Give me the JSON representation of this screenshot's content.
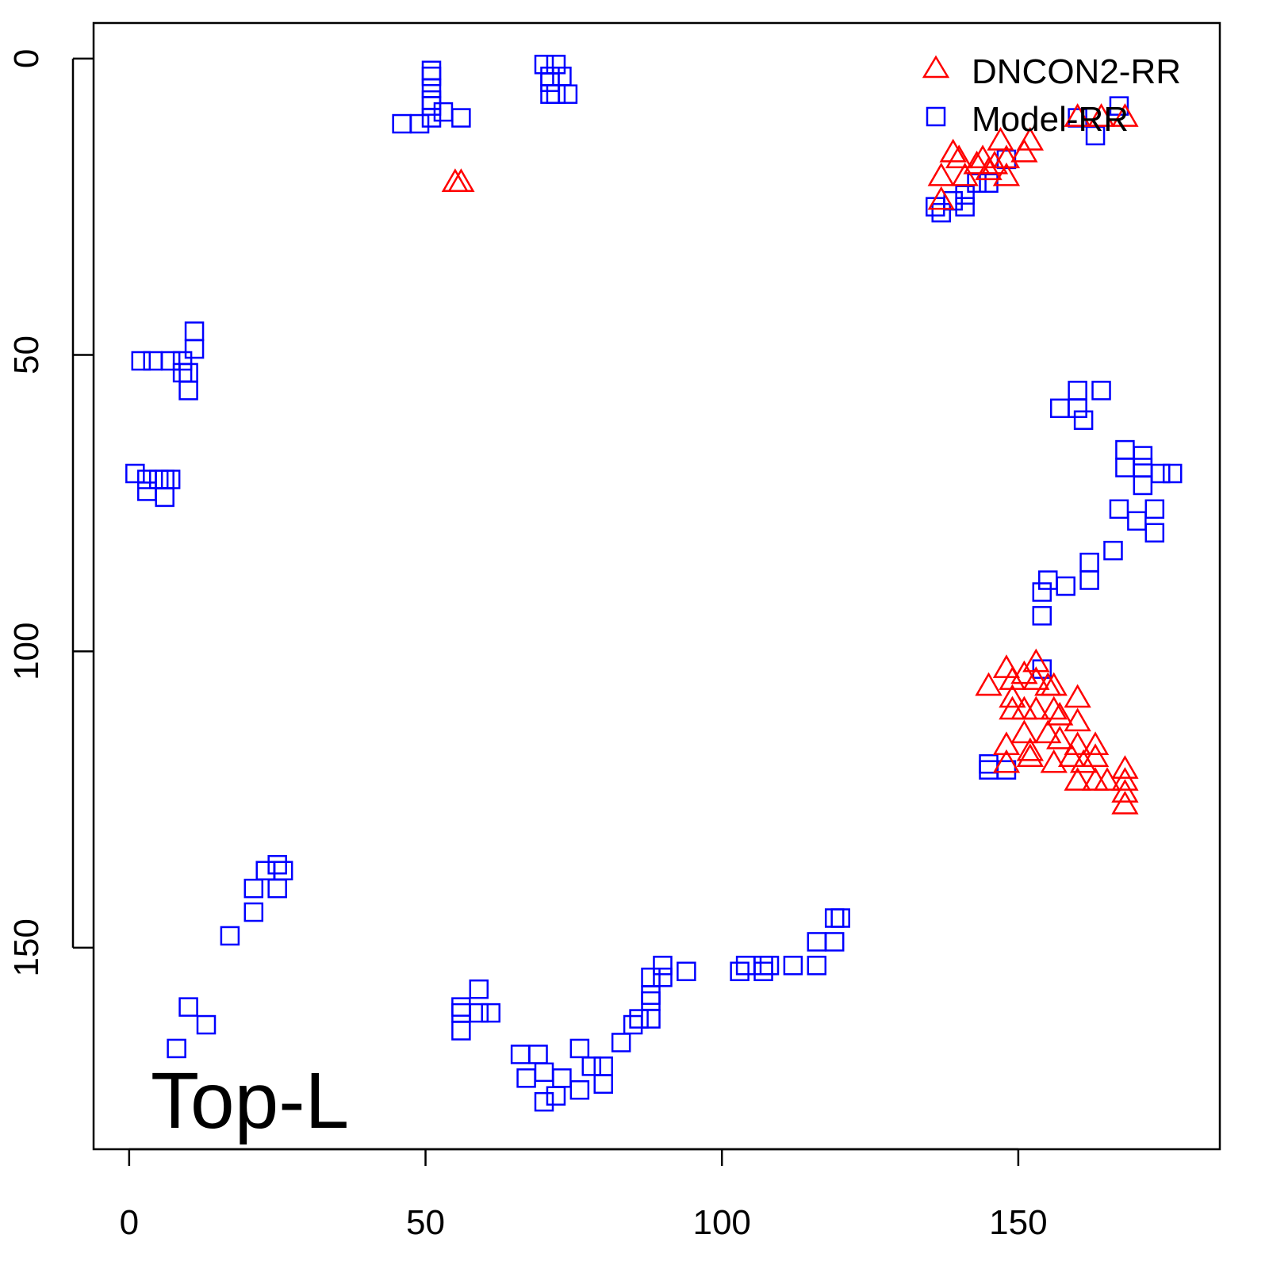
{
  "chart_data": {
    "type": "scatter",
    "title": "",
    "xlabel": "",
    "ylabel": "",
    "xlim": [
      -6,
      184
    ],
    "ylim": [
      -6,
      184
    ],
    "y_inverted": true,
    "x_ticks": [
      "0",
      "50",
      "100",
      "150"
    ],
    "x_tick_values": [
      0,
      50,
      100,
      150
    ],
    "y_ticks": [
      "0",
      "50",
      "100",
      "150"
    ],
    "y_tick_values": [
      0,
      50,
      100,
      150
    ],
    "grid": false,
    "legend_position": "top-right",
    "annotation": "Top-L",
    "series": [
      {
        "name": "DNCON2-RR",
        "marker": "triangle",
        "color": "#ff0000",
        "points": [
          [
            55,
            21
          ],
          [
            56,
            21
          ],
          [
            137,
            20
          ],
          [
            137,
            24
          ],
          [
            139,
            16
          ],
          [
            140,
            17
          ],
          [
            141,
            20
          ],
          [
            143,
            18
          ],
          [
            144,
            17
          ],
          [
            145,
            19
          ],
          [
            146,
            18
          ],
          [
            147,
            14
          ],
          [
            148,
            17
          ],
          [
            148,
            20
          ],
          [
            151,
            16
          ],
          [
            152,
            14
          ],
          [
            160,
            10
          ],
          [
            164,
            10
          ],
          [
            168,
            10
          ],
          [
            145,
            106
          ],
          [
            148,
            103
          ],
          [
            149,
            105
          ],
          [
            149,
            108
          ],
          [
            151,
            104
          ],
          [
            153,
            102
          ],
          [
            153,
            105
          ],
          [
            155,
            106
          ],
          [
            156,
            106
          ],
          [
            160,
            108
          ],
          [
            149,
            110
          ],
          [
            151,
            110
          ],
          [
            153,
            110
          ],
          [
            156,
            110
          ],
          [
            157,
            111
          ],
          [
            160,
            112
          ],
          [
            148,
            116
          ],
          [
            151,
            114
          ],
          [
            152,
            117
          ],
          [
            155,
            114
          ],
          [
            157,
            115
          ],
          [
            160,
            116
          ],
          [
            163,
            116
          ],
          [
            148,
            119
          ],
          [
            152,
            118
          ],
          [
            156,
            119
          ],
          [
            159,
            118
          ],
          [
            161,
            119
          ],
          [
            163,
            118
          ],
          [
            168,
            120
          ],
          [
            160,
            122
          ],
          [
            163,
            122
          ],
          [
            165,
            122
          ],
          [
            168,
            122
          ],
          [
            168,
            126
          ],
          [
            168,
            124
          ]
        ]
      },
      {
        "name": "Model-RR",
        "marker": "square",
        "color": "#0000ff",
        "points": [
          [
            51,
            2
          ],
          [
            51,
            3
          ],
          [
            51,
            5
          ],
          [
            51,
            7
          ],
          [
            51,
            8
          ],
          [
            51,
            10
          ],
          [
            46,
            11
          ],
          [
            49,
            11
          ],
          [
            53,
            9
          ],
          [
            56,
            10
          ],
          [
            70,
            1
          ],
          [
            72,
            1
          ],
          [
            71,
            3
          ],
          [
            73,
            3
          ],
          [
            71,
            4
          ],
          [
            71,
            6
          ],
          [
            72,
            6
          ],
          [
            74,
            6
          ],
          [
            2,
            51
          ],
          [
            4,
            51
          ],
          [
            7,
            51
          ],
          [
            9,
            51
          ],
          [
            9,
            53
          ],
          [
            10,
            53
          ],
          [
            10,
            56
          ],
          [
            11,
            46
          ],
          [
            11,
            49
          ],
          [
            1,
            70
          ],
          [
            3,
            71
          ],
          [
            3,
            73
          ],
          [
            5,
            71
          ],
          [
            6,
            71
          ],
          [
            6,
            74
          ],
          [
            7,
            71
          ],
          [
            136,
            25
          ],
          [
            137,
            26
          ],
          [
            139,
            24
          ],
          [
            141,
            25
          ],
          [
            141,
            23
          ],
          [
            143,
            21
          ],
          [
            145,
            21
          ],
          [
            148,
            17
          ],
          [
            160,
            10
          ],
          [
            163,
            13
          ],
          [
            167,
            8
          ],
          [
            157,
            59
          ],
          [
            160,
            56
          ],
          [
            160,
            59
          ],
          [
            161,
            61
          ],
          [
            164,
            56
          ],
          [
            168,
            66
          ],
          [
            168,
            69
          ],
          [
            171,
            67
          ],
          [
            171,
            69
          ],
          [
            171,
            72
          ],
          [
            174,
            70
          ],
          [
            176,
            70
          ],
          [
            167,
            76
          ],
          [
            170,
            78
          ],
          [
            173,
            80
          ],
          [
            173,
            76
          ],
          [
            166,
            83
          ],
          [
            162,
            85
          ],
          [
            162,
            88
          ],
          [
            158,
            89
          ],
          [
            155,
            88
          ],
          [
            154,
            90
          ],
          [
            154,
            94
          ],
          [
            154,
            103
          ],
          [
            145,
            119
          ],
          [
            148,
            120
          ],
          [
            145,
            120
          ],
          [
            25,
            136
          ],
          [
            23,
            137
          ],
          [
            26,
            137
          ],
          [
            21,
            140
          ],
          [
            25,
            140
          ],
          [
            21,
            144
          ],
          [
            17,
            148
          ],
          [
            10,
            160
          ],
          [
            13,
            163
          ],
          [
            8,
            167
          ],
          [
            56,
            160
          ],
          [
            59,
            157
          ],
          [
            56,
            161
          ],
          [
            59,
            161
          ],
          [
            61,
            161
          ],
          [
            56,
            164
          ],
          [
            66,
            168
          ],
          [
            69,
            168
          ],
          [
            67,
            172
          ],
          [
            70,
            171
          ],
          [
            70,
            176
          ],
          [
            72,
            175
          ],
          [
            73,
            172
          ],
          [
            76,
            167
          ],
          [
            76,
            174
          ],
          [
            78,
            170
          ],
          [
            80,
            170
          ],
          [
            80,
            173
          ],
          [
            83,
            166
          ],
          [
            85,
            163
          ],
          [
            86,
            162
          ],
          [
            88,
            162
          ],
          [
            88,
            159
          ],
          [
            88,
            158
          ],
          [
            88,
            155
          ],
          [
            90,
            155
          ],
          [
            90,
            153
          ],
          [
            94,
            154
          ],
          [
            103,
            154
          ],
          [
            104,
            153
          ],
          [
            107,
            153
          ],
          [
            107,
            154
          ],
          [
            108,
            153
          ],
          [
            112,
            153
          ],
          [
            116,
            153
          ],
          [
            116,
            149
          ],
          [
            119,
            149
          ],
          [
            120,
            145
          ],
          [
            119,
            145
          ]
        ]
      }
    ]
  }
}
